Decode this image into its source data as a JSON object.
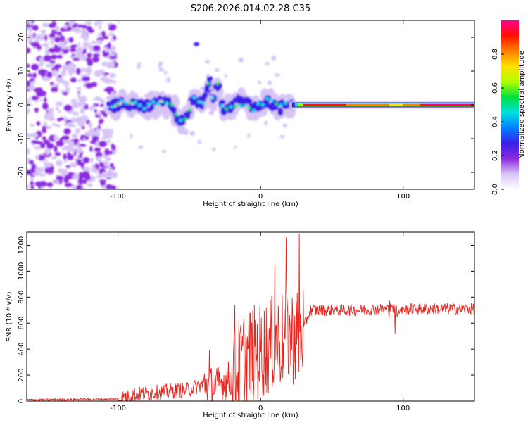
{
  "title": "S206.2026.014.02.28.C35",
  "chart_data": [
    {
      "type": "heatmap",
      "panel": "spectrogram",
      "xlabel": "Height of straight line (km)",
      "ylabel": "Frequency (Hz)",
      "xlim": [
        -164,
        150
      ],
      "ylim": [
        -25,
        25
      ],
      "xticks": [
        -100,
        0,
        100
      ],
      "yticks": [
        -20,
        -10,
        0,
        10,
        20
      ],
      "colorbar": {
        "label": "Normalized spectral amplitude",
        "range": [
          0,
          1
        ],
        "ticks": [
          "0.0",
          "0.2",
          "0.4",
          "0.6",
          "0.8"
        ],
        "colors": [
          "#ffffff",
          "#d7c4f5",
          "#8b2be0",
          "#3a1ee8",
          "#0080ff",
          "#00e0e0",
          "#00e040",
          "#b0ff00",
          "#ffe000",
          "#ff8000",
          "#ff1000",
          "#ff0090"
        ]
      },
      "description_regions": [
        {
          "x_range": [
            -164,
            -103
          ],
          "freq_range": [
            -25,
            25
          ],
          "amplitude": "low noise"
        },
        {
          "x_range": [
            -108,
            20
          ],
          "freq_range": [
            -12,
            10
          ],
          "amplitude": "medium, wandering around 0 Hz"
        },
        {
          "x_range": [
            20,
            150
          ],
          "freq_range": [
            -1,
            1
          ],
          "amplitude": "high, line at 0 Hz"
        }
      ]
    },
    {
      "type": "line",
      "panel": "snr",
      "xlabel": "Height of straight line (km)",
      "ylabel": "SNR (10 * v/v)",
      "xlim": [
        -164,
        150
      ],
      "ylim": [
        0,
        1300
      ],
      "xticks": [
        -100,
        0,
        100
      ],
      "yticks": [
        0,
        200,
        400,
        600,
        800,
        1000,
        1200
      ],
      "color": "#e8261e",
      "series_profile": [
        {
          "x": -164,
          "y": 10
        },
        {
          "x": -100,
          "y": 15
        },
        {
          "x": -90,
          "y": 50
        },
        {
          "x": -70,
          "y": 70
        },
        {
          "x": -50,
          "y": 90
        },
        {
          "x": -40,
          "y": 130
        },
        {
          "x": -30,
          "y": 120
        },
        {
          "x": -20,
          "y": 180
        },
        {
          "x": -10,
          "y": 350
        },
        {
          "x": 0,
          "y": 380
        },
        {
          "x": 10,
          "y": 450
        },
        {
          "x": 20,
          "y": 500
        },
        {
          "x": 28,
          "y": 500
        },
        {
          "x": 35,
          "y": 700
        },
        {
          "x": 60,
          "y": 700
        },
        {
          "x": 100,
          "y": 710
        },
        {
          "x": 150,
          "y": 710
        }
      ],
      "peaks": [
        {
          "x": -36,
          "y": 390
        },
        {
          "x": -18,
          "y": 740
        },
        {
          "x": 10,
          "y": 1050
        },
        {
          "x": 18,
          "y": 1260
        },
        {
          "x": 27,
          "y": 1290
        }
      ]
    }
  ]
}
